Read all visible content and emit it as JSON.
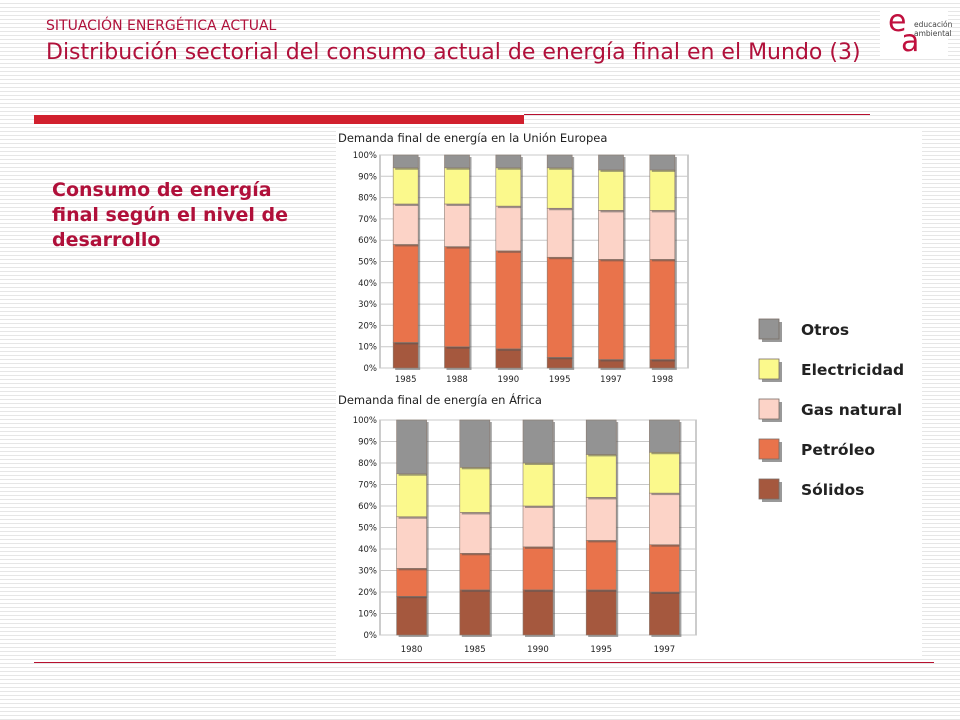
{
  "header": {
    "kicker": "SITUACIÓN ENERGÉTICA ACTUAL",
    "title": "Distribución sectorial del consumo actual de energía final en el Mundo (3)"
  },
  "logo": {
    "letter_e": "e",
    "letter_a": "a",
    "line1": "educación",
    "line2": "ambiental"
  },
  "subtitle": "Consumo de energía final según el nivel de desarrollo",
  "colors": {
    "otros": "#939393",
    "electricidad": "#fbf98c",
    "gas_natural": "#fcd3c7",
    "petroleo": "#e9734b",
    "solidos": "#a5583e"
  },
  "legend": [
    {
      "key": "otros",
      "label": "Otros"
    },
    {
      "key": "electricidad",
      "label": "Electricidad"
    },
    {
      "key": "gas_natural",
      "label": "Gas natural"
    },
    {
      "key": "petroleo",
      "label": "Petróleo"
    },
    {
      "key": "solidos",
      "label": "Sólidos"
    }
  ],
  "chart_data": [
    {
      "type": "bar",
      "stacked": true,
      "title": "Demanda final de energía en la Unión Europea",
      "categories": [
        "1985",
        "1988",
        "1990",
        "1995",
        "1997",
        "1998"
      ],
      "ylim": [
        0,
        100
      ],
      "yticks": [
        "0%",
        "10%",
        "20%",
        "30%",
        "40%",
        "50%",
        "60%",
        "70%",
        "80%",
        "90%",
        "100%"
      ],
      "series": [
        {
          "name": "Sólidos",
          "key": "solidos",
          "values": [
            12,
            10,
            9,
            5,
            4,
            4
          ]
        },
        {
          "name": "Petróleo",
          "key": "petroleo",
          "values": [
            46,
            47,
            46,
            47,
            47,
            47
          ]
        },
        {
          "name": "Gas natural",
          "key": "gas_natural",
          "values": [
            19,
            20,
            21,
            23,
            23,
            23
          ]
        },
        {
          "name": "Electricidad",
          "key": "electricidad",
          "values": [
            17,
            17,
            18,
            19,
            19,
            19
          ]
        },
        {
          "name": "Otros",
          "key": "otros",
          "values": [
            6,
            6,
            6,
            6,
            7,
            7
          ]
        }
      ]
    },
    {
      "type": "bar",
      "stacked": true,
      "title": "Demanda final de energía en África",
      "categories": [
        "1980",
        "1985",
        "1990",
        "1995",
        "1997"
      ],
      "ylim": [
        0,
        100
      ],
      "yticks": [
        "0%",
        "10%",
        "20%",
        "30%",
        "40%",
        "50%",
        "60%",
        "70%",
        "80%",
        "90%",
        "100%"
      ],
      "series": [
        {
          "name": "Sólidos",
          "key": "solidos",
          "values": [
            18,
            21,
            21,
            21,
            20
          ]
        },
        {
          "name": "Petróleo",
          "key": "petroleo",
          "values": [
            13,
            17,
            20,
            23,
            22
          ]
        },
        {
          "name": "Gas natural",
          "key": "gas_natural",
          "values": [
            24,
            19,
            19,
            20,
            24
          ]
        },
        {
          "name": "Electricidad",
          "key": "electricidad",
          "values": [
            20,
            21,
            20,
            20,
            19
          ]
        },
        {
          "name": "Otros",
          "key": "otros",
          "values": [
            25,
            22,
            20,
            16,
            15
          ]
        }
      ]
    }
  ]
}
